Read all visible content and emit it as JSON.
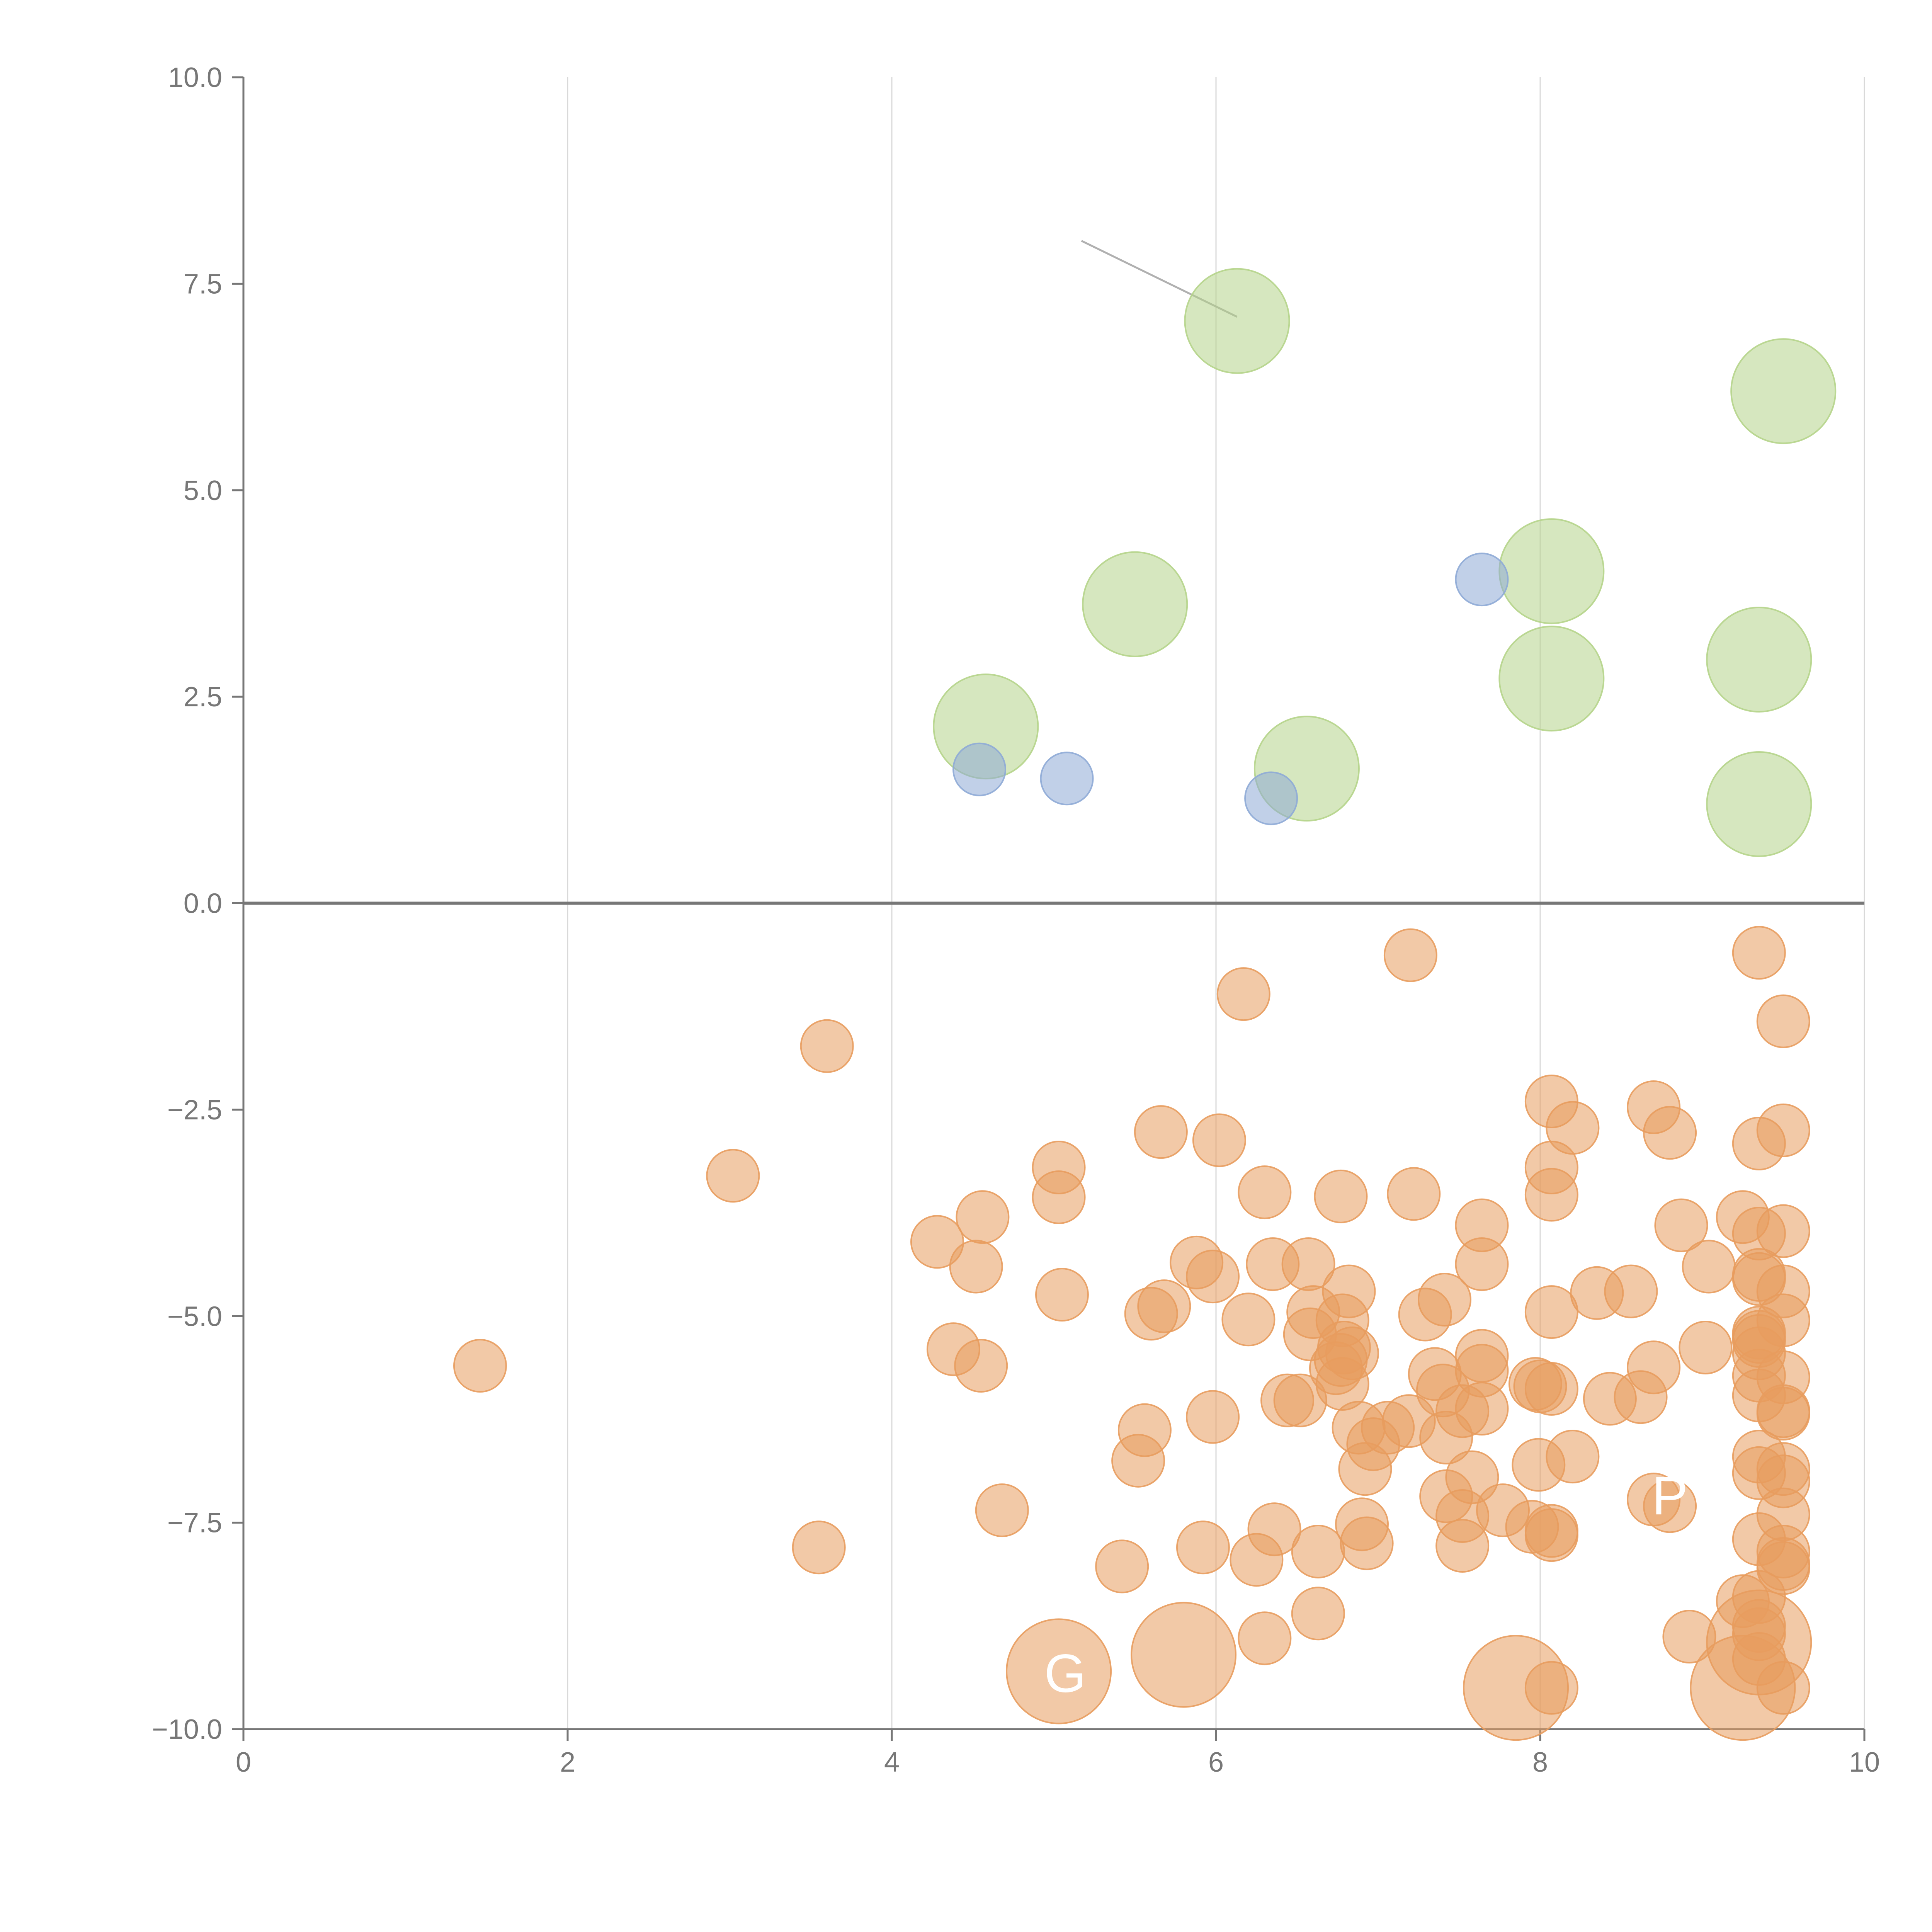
{
  "chart_data": {
    "type": "scatter",
    "title": "",
    "xlabel": "",
    "ylabel": "",
    "xlim": [
      0,
      10
    ],
    "ylim": [
      -10,
      10
    ],
    "grid": {
      "vertical": true,
      "horizontal": false
    },
    "zero_line": true,
    "x_ticks": [
      {
        "value": 0,
        "label": "0"
      },
      {
        "value": 2,
        "label": "2"
      },
      {
        "value": 4,
        "label": "4"
      },
      {
        "value": 6,
        "label": "6"
      },
      {
        "value": 8,
        "label": "8"
      },
      {
        "value": 10,
        "label": "10"
      }
    ],
    "y_ticks": [
      {
        "value": 10,
        "label": "10.0"
      },
      {
        "value": 7.5,
        "label": "7.5"
      },
      {
        "value": 5,
        "label": "5.0"
      },
      {
        "value": 2.5,
        "label": "2.5"
      },
      {
        "value": 0,
        "label": "0.0"
      },
      {
        "value": -2.5,
        "label": "−2.5"
      },
      {
        "value": -5,
        "label": "−5.0"
      },
      {
        "value": -7.5,
        "label": "−7.5"
      },
      {
        "value": -10,
        "label": "−10.0"
      }
    ],
    "colors": {
      "green": "#b5d48a",
      "blue": "#8eaad6",
      "orange": "#e89c5e",
      "axis": "#777777",
      "grid": "#d9d9d9"
    },
    "series": [
      {
        "color_key": "green",
        "size": 3,
        "points": [
          [
            6.13,
            7.05
          ],
          [
            9.5,
            6.2
          ],
          [
            5.5,
            3.62
          ],
          [
            8.07,
            4.02
          ],
          [
            9.35,
            2.95
          ],
          [
            8.07,
            2.72
          ],
          [
            4.58,
            2.14
          ],
          [
            6.56,
            1.63
          ],
          [
            9.35,
            1.2
          ]
        ]
      },
      {
        "color_key": "blue",
        "size": 1.5,
        "points": [
          [
            7.64,
            3.92
          ],
          [
            4.54,
            1.62
          ],
          [
            5.08,
            1.51
          ],
          [
            6.34,
            1.27
          ]
        ]
      },
      {
        "color_key": "orange",
        "size": 1.5,
        "points": [
          [
            7.2,
            -0.63
          ],
          [
            9.35,
            -0.6
          ],
          [
            6.17,
            -1.1
          ],
          [
            3.6,
            -1.73
          ],
          [
            9.5,
            -1.43
          ],
          [
            8.07,
            -2.4
          ],
          [
            8.7,
            -2.47
          ],
          [
            8.2,
            -2.72
          ],
          [
            8.8,
            -2.78
          ],
          [
            9.5,
            -2.75
          ],
          [
            5.66,
            -2.77
          ],
          [
            6.02,
            -2.87
          ],
          [
            9.35,
            -2.91
          ],
          [
            3.02,
            -3.3
          ],
          [
            5.03,
            -3.2
          ],
          [
            8.07,
            -3.2
          ],
          [
            5.03,
            -3.56
          ],
          [
            6.3,
            -3.5
          ],
          [
            6.77,
            -3.55
          ],
          [
            7.22,
            -3.52
          ],
          [
            8.07,
            -3.53
          ],
          [
            4.56,
            -3.8
          ],
          [
            7.64,
            -3.9
          ],
          [
            8.87,
            -3.9
          ],
          [
            9.25,
            -3.8
          ],
          [
            9.35,
            -4.0
          ],
          [
            9.5,
            -3.97
          ],
          [
            4.28,
            -4.1
          ],
          [
            4.52,
            -4.4
          ],
          [
            5.88,
            -4.35
          ],
          [
            6.35,
            -4.37
          ],
          [
            6.57,
            -4.37
          ],
          [
            7.64,
            -4.37
          ],
          [
            5.98,
            -4.52
          ],
          [
            9.04,
            -4.4
          ],
          [
            9.35,
            -4.5
          ],
          [
            9.35,
            -4.55
          ],
          [
            5.05,
            -4.74
          ],
          [
            6.82,
            -4.7
          ],
          [
            7.41,
            -4.8
          ],
          [
            8.35,
            -4.72
          ],
          [
            8.56,
            -4.7
          ],
          [
            9.5,
            -4.7
          ],
          [
            5.6,
            -4.97
          ],
          [
            5.68,
            -4.88
          ],
          [
            6.2,
            -5.04
          ],
          [
            6.6,
            -4.95
          ],
          [
            6.78,
            -5.05
          ],
          [
            7.29,
            -4.98
          ],
          [
            8.07,
            -4.95
          ],
          [
            9.35,
            -5.2
          ],
          [
            9.35,
            -5.3
          ],
          [
            9.35,
            -5.25
          ],
          [
            9.5,
            -5.05
          ],
          [
            4.38,
            -5.4
          ],
          [
            6.58,
            -5.22
          ],
          [
            6.79,
            -5.38
          ],
          [
            6.84,
            -5.45
          ],
          [
            6.77,
            -5.53
          ],
          [
            7.64,
            -5.48
          ],
          [
            9.02,
            -5.38
          ],
          [
            9.35,
            -5.45
          ],
          [
            1.46,
            -5.6
          ],
          [
            4.55,
            -5.6
          ],
          [
            6.74,
            -5.63
          ],
          [
            7.35,
            -5.7
          ],
          [
            7.64,
            -5.66
          ],
          [
            8.7,
            -5.62
          ],
          [
            9.35,
            -5.72
          ],
          [
            9.5,
            -5.74
          ],
          [
            6.78,
            -5.82
          ],
          [
            7.4,
            -5.9
          ],
          [
            7.97,
            -5.82
          ],
          [
            8.0,
            -5.85
          ],
          [
            8.07,
            -5.88
          ],
          [
            6.44,
            -6.02
          ],
          [
            6.52,
            -6.02
          ],
          [
            8.43,
            -6.0
          ],
          [
            8.62,
            -5.98
          ],
          [
            9.35,
            -5.96
          ],
          [
            5.98,
            -6.22
          ],
          [
            7.52,
            -6.15
          ],
          [
            7.64,
            -6.12
          ],
          [
            9.5,
            -6.15
          ],
          [
            9.5,
            -6.18
          ],
          [
            5.56,
            -6.38
          ],
          [
            6.88,
            -6.35
          ],
          [
            7.06,
            -6.35
          ],
          [
            7.19,
            -6.27
          ],
          [
            6.97,
            -6.55
          ],
          [
            7.42,
            -6.47
          ],
          [
            5.52,
            -6.75
          ],
          [
            8.2,
            -6.7
          ],
          [
            9.35,
            -6.7
          ],
          [
            6.92,
            -6.85
          ],
          [
            7.99,
            -6.8
          ],
          [
            9.5,
            -6.85
          ],
          [
            7.58,
            -6.95
          ],
          [
            9.35,
            -6.9
          ],
          [
            9.5,
            -7.0
          ],
          [
            7.42,
            -7.18
          ],
          [
            8.7,
            -7.22
          ],
          [
            8.8,
            -7.3
          ],
          [
            4.68,
            -7.35
          ],
          [
            7.77,
            -7.35
          ],
          [
            9.5,
            -7.4
          ],
          [
            7.52,
            -7.42
          ],
          [
            6.9,
            -7.52
          ],
          [
            6.36,
            -7.58
          ],
          [
            7.95,
            -7.55
          ],
          [
            8.07,
            -7.6
          ],
          [
            8.07,
            -7.65
          ],
          [
            6.93,
            -7.75
          ],
          [
            3.55,
            -7.8
          ],
          [
            5.92,
            -7.8
          ],
          [
            7.52,
            -7.78
          ],
          [
            9.35,
            -7.7
          ],
          [
            6.25,
            -7.95
          ],
          [
            6.63,
            -7.85
          ],
          [
            9.5,
            -7.85
          ],
          [
            9.5,
            -8.0
          ],
          [
            5.42,
            -8.03
          ],
          [
            9.5,
            -8.05
          ],
          [
            9.25,
            -8.45
          ],
          [
            9.35,
            -8.4
          ],
          [
            6.63,
            -8.6
          ],
          [
            9.35,
            -8.75
          ],
          [
            9.35,
            -8.85
          ],
          [
            6.3,
            -8.9
          ],
          [
            8.92,
            -8.88
          ],
          [
            9.35,
            -9.15
          ],
          [
            8.07,
            -9.5
          ],
          [
            9.5,
            -9.5
          ]
        ]
      },
      {
        "color_key": "orange",
        "size": 3,
        "points": [
          [
            5.03,
            -9.3
          ],
          [
            5.8,
            -9.1
          ],
          [
            7.85,
            -9.5
          ],
          [
            9.25,
            -9.5
          ],
          [
            9.35,
            -8.95
          ]
        ]
      }
    ],
    "annotations": [
      {
        "text": "P",
        "x": 8.8,
        "y": -7.4
      },
      {
        "text": "G",
        "x": 5.07,
        "y": -9.55
      }
    ]
  }
}
